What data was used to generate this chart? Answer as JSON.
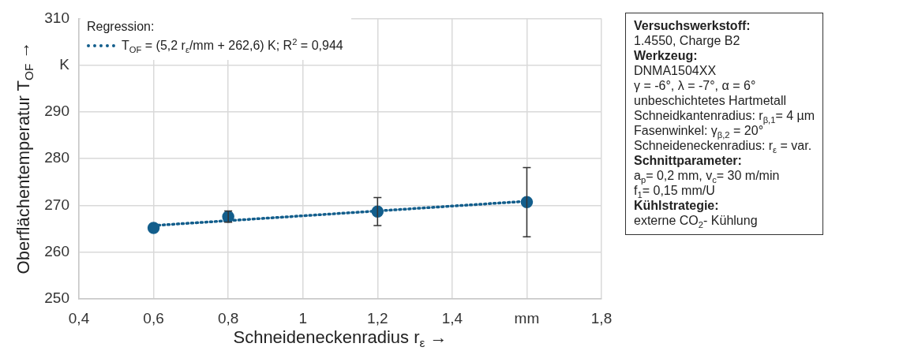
{
  "chart_data": {
    "type": "scatter",
    "xlabel": "Schneideneckenradius r$_{ε}$ →",
    "ylabel": "Oberflächentemperatur T$_{OF}$ →",
    "legend_title": "Regression:",
    "legend": "top left",
    "grid": true,
    "marker": "circle",
    "xlim": [
      0.4,
      1.8
    ],
    "xticks": [
      {
        "value": 0.4,
        "label": "0,4"
      },
      {
        "value": 0.6,
        "label": "0,6"
      },
      {
        "value": 0.8,
        "label": "0,8"
      },
      1,
      {
        "value": 1.2,
        "label": "1,2"
      },
      {
        "value": 1.4,
        "label": "1,4"
      },
      {
        "value": 1.6,
        "label": "mm"
      },
      {
        "value": 1.8,
        "label": "1,8"
      }
    ],
    "ylim": [
      250,
      310
    ],
    "yticks": [
      250,
      260,
      270,
      280,
      290,
      {
        "value": 300,
        "label": "K"
      },
      310
    ],
    "series": [
      {
        "color": "#135e8c",
        "x": [
          0.6,
          0.8,
          1.2,
          1.6
        ],
        "values": [
          265.2,
          267.6,
          268.7,
          270.7
        ],
        "errors": [
          null,
          1.2,
          3,
          7.4
        ]
      },
      {
        "type": "line",
        "name": "T$_{OF}$ = (5,2 r$_{ε}$/mm + 262,6) K; R$^{2}$ = 0,944",
        "color": "#135e8c",
        "line_style": "dotted",
        "marker": "none",
        "x": [
          0.6,
          1.6
        ],
        "values": [
          265.7,
          270.9
        ]
      }
    ],
    "annotations": [
      "Versuchswerkstoff:",
      "1.4550, Charge B2",
      "Werkzeug:",
      "DNMA1504XX",
      "γ = -6°, λ = -7°, α = 6°",
      "unbeschichtetes Hartmetall",
      "Schneidkantenradius: r$_{β,1}$= 4 µm",
      "Fasenwinkel: γ$_{β,2}$ = 20°",
      "Schneideneckenradius: r$_{ε}$ = var.",
      "Schnittparameter:",
      "a$_{p}$= 0,2 mm, v$_{c}$= 30 m/min",
      "f$_{1}$= 0,15 mm/U",
      "Kühlstrategie:",
      "externe CO$_{2}$- Kühlung"
    ]
  }
}
